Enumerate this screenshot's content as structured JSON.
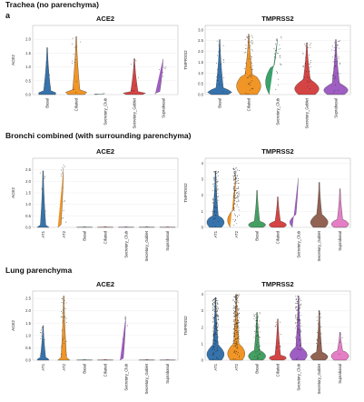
{
  "figure": {
    "panel_letter": "a",
    "sections": [
      "Trachea (no parenchyma)",
      "Bronchi combined (with surrounding parenchyma)",
      "Lung parenchyma"
    ]
  },
  "colors": {
    "AT1": "#2b6ca8",
    "AT2": "#ef8f1a",
    "Basal": "#2b6ca8",
    "Ciliated": "#ef8f1a",
    "Secretory_Club": "#2e9e64",
    "Secretory_Goblet": "#d33a3a",
    "Suprabasal": "#9a55c0",
    "Basal_b": "#3a9a5a",
    "Ciliated_b": "#d33a3a",
    "Secretory_Club_b": "#9a55c0",
    "Secretory_Goblet_b": "#8c5a4a",
    "Suprabasal_b": "#e377c2"
  },
  "chart_data": [
    {
      "type": "violin",
      "title": "ACE2",
      "ylabel": "ACE2",
      "ylim": [
        0,
        2.5
      ],
      "yticks": [
        "0.0",
        "0.5",
        "1.0",
        "1.5",
        "2.0"
      ],
      "categories": [
        "Basal",
        "Ciliated",
        "Secretory_Club",
        "Secretory_Goblet",
        "Suprabasal"
      ],
      "max": [
        1.7,
        2.1,
        0.05,
        1.3,
        1.35
      ],
      "body": [
        0.08,
        0.12,
        0.02,
        0.08,
        0.06
      ],
      "jitter": [
        6,
        14,
        1,
        9,
        6
      ]
    },
    {
      "type": "violin",
      "title": "TMPRSS2",
      "ylabel": "TMPRSS2",
      "ylim": [
        0,
        3.2
      ],
      "yticks": [
        "0.0",
        "0.5",
        "1.0",
        "1.5",
        "2.0",
        "2.5",
        "3.0"
      ],
      "categories": [
        "Basal",
        "Ciliated",
        "Secretory_Club",
        "Secretory_Goblet",
        "Suprabasal"
      ],
      "max": [
        2.55,
        2.8,
        2.7,
        2.4,
        2.55
      ],
      "body": [
        0.25,
        0.9,
        1.3,
        0.6,
        0.45
      ],
      "jitter": [
        20,
        60,
        30,
        35,
        45
      ]
    },
    {
      "type": "violin",
      "title": "ACE2",
      "ylabel": "ACE2",
      "ylim": [
        0,
        3.0
      ],
      "yticks": [
        "0.0",
        "0.5",
        "1.0",
        "1.5",
        "2.0",
        "2.5"
      ],
      "categories": [
        "AT1",
        "AT2",
        "Basal",
        "Ciliated",
        "Secretory_Club",
        "Secretory_Goblet",
        "Suprabasal"
      ],
      "max": [
        2.45,
        2.7,
        0.03,
        0.03,
        0.03,
        0.03,
        0.03
      ],
      "body": [
        0.06,
        0.08,
        0.01,
        0.01,
        0.01,
        0.01,
        0.01
      ],
      "jitter": [
        8,
        14,
        0,
        0,
        0,
        0,
        0
      ]
    },
    {
      "type": "violin",
      "title": "TMPRSS2",
      "ylabel": "TMPRSS2",
      "ylim": [
        0,
        4.3
      ],
      "yticks": [
        "0",
        "1",
        "2",
        "3",
        "4"
      ],
      "categories": [
        "AT1",
        "AT2",
        "Basal",
        "Ciliated",
        "Secretory_Club",
        "Secretory_Goblet",
        "Suprabasal"
      ],
      "max": [
        3.5,
        3.7,
        2.3,
        1.9,
        3.2,
        2.8,
        2.4
      ],
      "body": [
        0.7,
        1.0,
        0.35,
        0.35,
        0.7,
        0.7,
        0.45
      ],
      "jitter": [
        70,
        120,
        0,
        0,
        0,
        0,
        0
      ]
    },
    {
      "type": "violin",
      "title": "ACE2",
      "ylabel": "ACE2",
      "ylim": [
        0,
        2.8
      ],
      "yticks": [
        "0.0",
        "0.5",
        "1.0",
        "1.5",
        "2.0",
        "2.5"
      ],
      "categories": [
        "AT1",
        "AT2",
        "Basal",
        "Ciliated",
        "Secretory_Club",
        "Secretory_Goblet",
        "Suprabasal"
      ],
      "max": [
        1.4,
        2.6,
        0.03,
        0.03,
        1.85,
        0.03,
        0.03
      ],
      "body": [
        0.06,
        0.1,
        0.01,
        0.01,
        0.05,
        0.01,
        0.01
      ],
      "jitter": [
        10,
        30,
        0,
        0,
        4,
        0,
        0
      ]
    },
    {
      "type": "violin",
      "title": "TMPRSS2",
      "ylabel": "TMPRSS2",
      "ylim": [
        0,
        4.2
      ],
      "yticks": [
        "0",
        "1",
        "2",
        "3",
        "4"
      ],
      "categories": [
        "AT1",
        "AT2",
        "Basal",
        "Ciliated",
        "Secretory_Club",
        "Secretory_Goblet",
        "Suprabasal"
      ],
      "max": [
        3.8,
        4.0,
        2.9,
        2.5,
        3.9,
        3.0,
        1.7
      ],
      "body": [
        0.8,
        0.9,
        0.55,
        0.3,
        0.7,
        0.45,
        0.55
      ],
      "jitter": [
        160,
        200,
        60,
        12,
        90,
        20,
        4
      ]
    }
  ]
}
